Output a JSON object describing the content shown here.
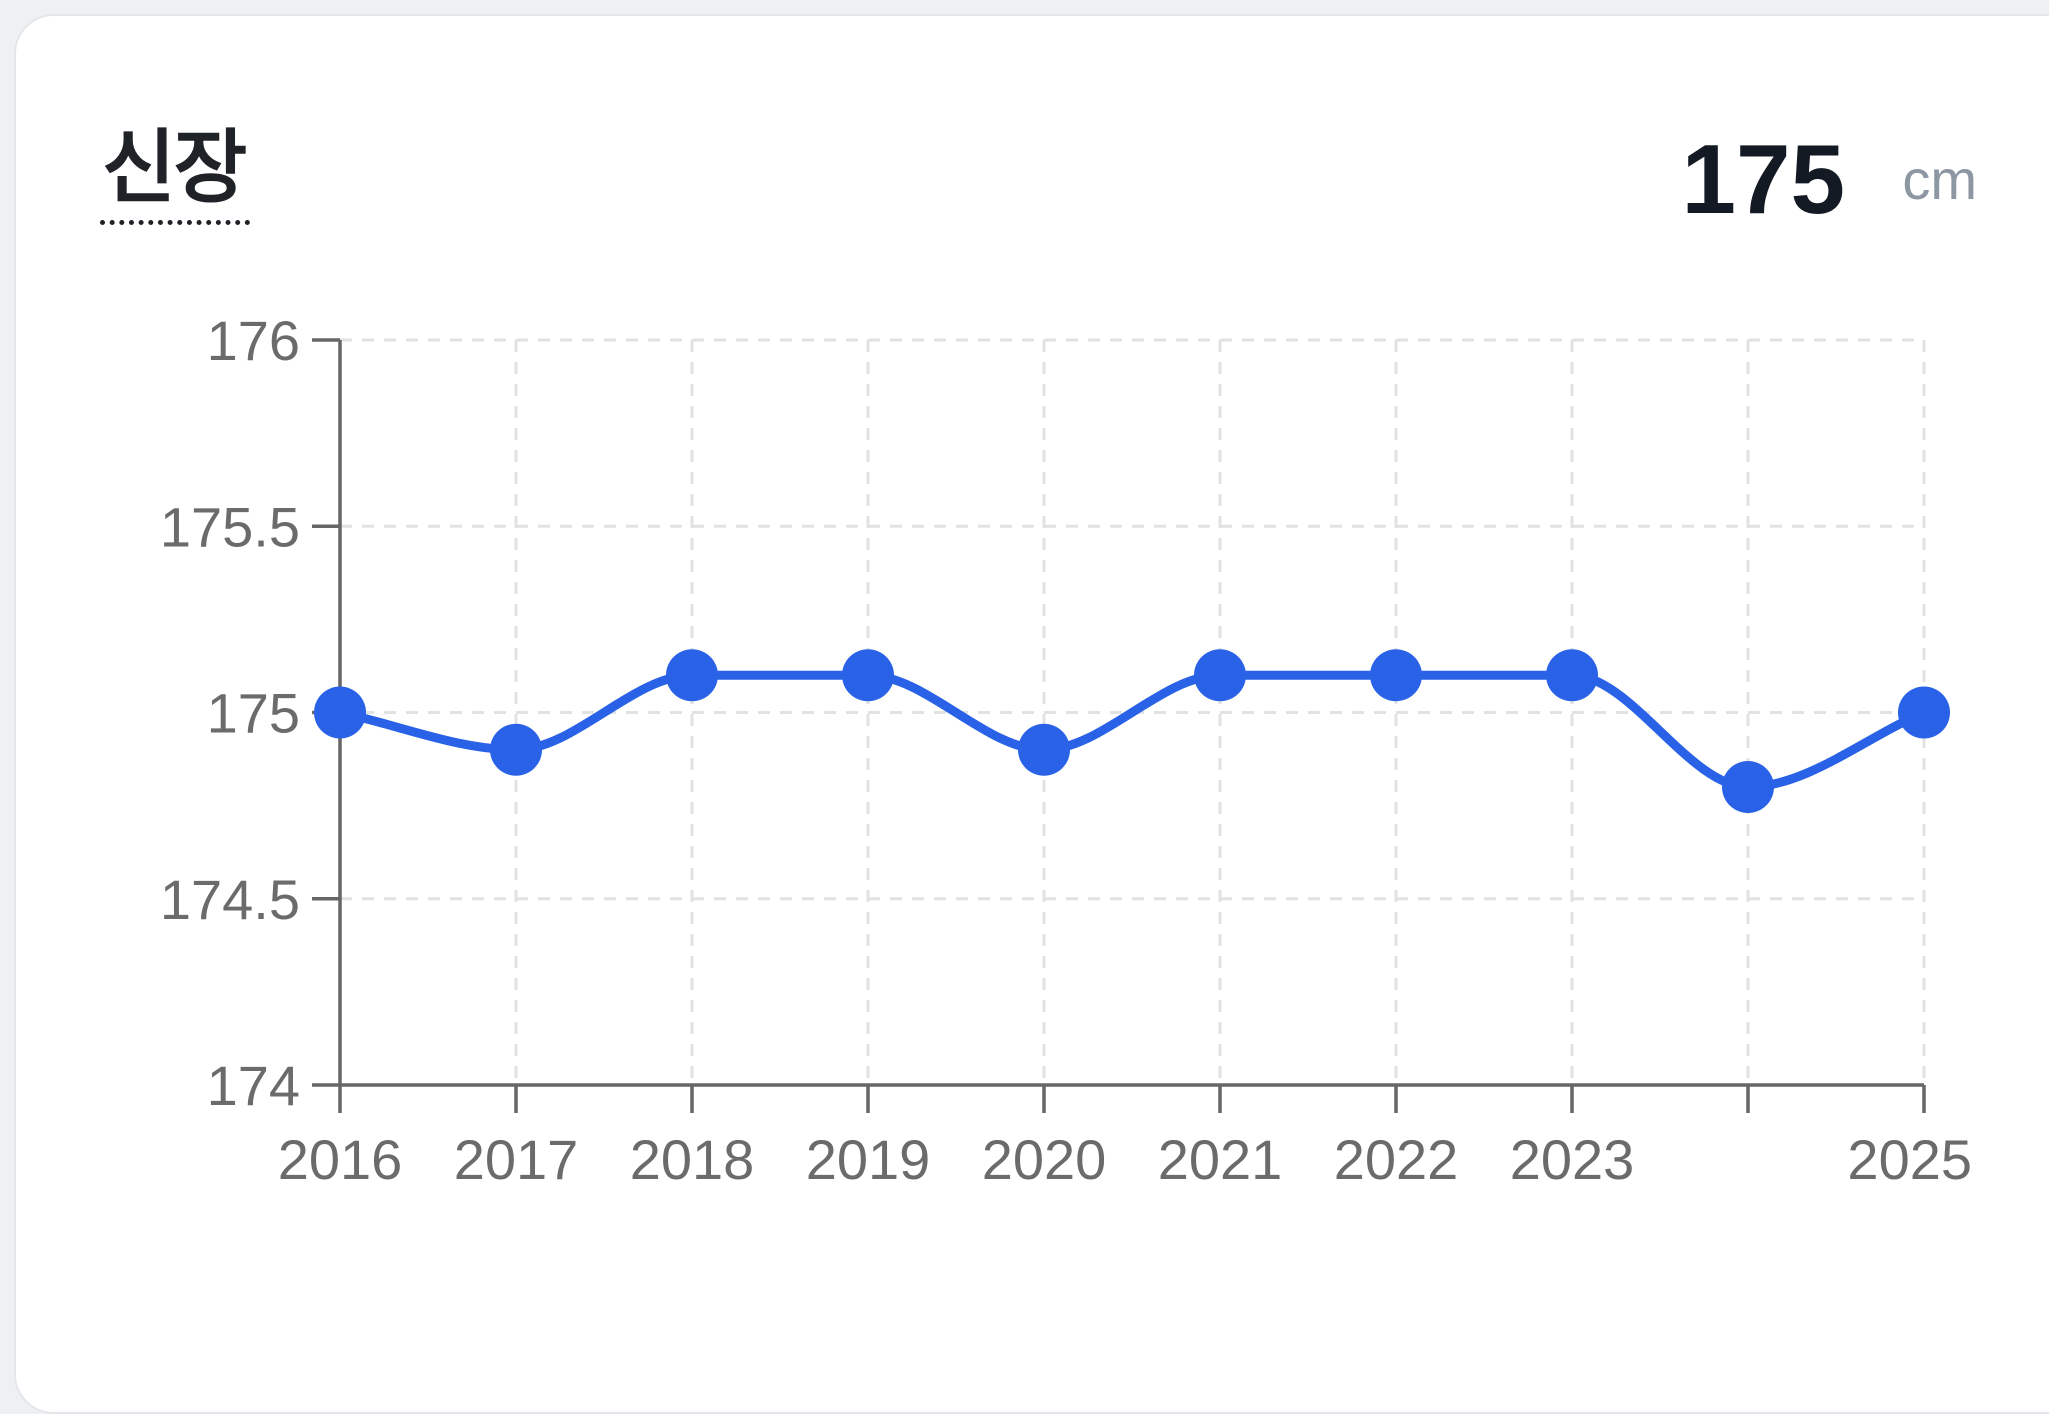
{
  "card": {
    "title": "신장",
    "value": "175",
    "unit": "cm"
  },
  "colors": {
    "series": "#2962e6",
    "axis": "#666666",
    "grid": "#e2e2e2",
    "tick_text": "#6b6b6b"
  },
  "chart_data": {
    "type": "line",
    "title": "",
    "xlabel": "",
    "ylabel": "",
    "x": [
      2016,
      2017,
      2018,
      2019,
      2020,
      2021,
      2022,
      2023,
      2024,
      2025
    ],
    "xlim": [
      2016,
      2025
    ],
    "x_tick_labels": [
      "2016",
      "2017",
      "2018",
      "2019",
      "2020",
      "2021",
      "2022",
      "2023",
      "",
      "2025"
    ],
    "ylim": [
      174,
      176
    ],
    "y_ticks": [
      174,
      174.5,
      175,
      175.5,
      176
    ],
    "y_tick_labels": [
      "174",
      "174.5",
      "175",
      "175.5",
      "176"
    ],
    "grid": true,
    "smooth": true,
    "series": [
      {
        "values": [
          175.0,
          174.9,
          175.1,
          175.1,
          174.9,
          175.1,
          175.1,
          175.1,
          174.8,
          175.0
        ]
      }
    ]
  }
}
